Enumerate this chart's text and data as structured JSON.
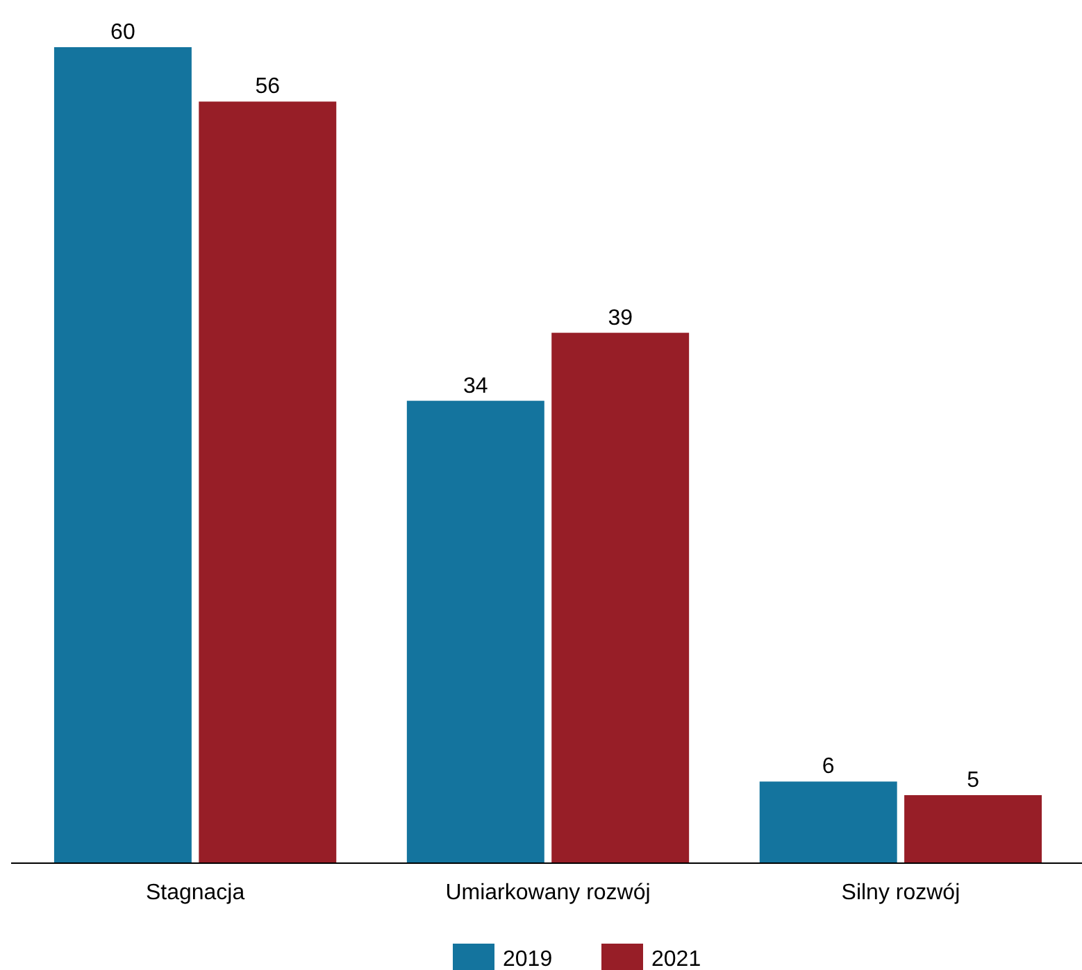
{
  "chart_data": {
    "type": "bar",
    "categories": [
      "Stagnacja",
      "Umiarkowany rozwój",
      "Silny rozwój"
    ],
    "series": [
      {
        "name": "2019",
        "color": "#14749e",
        "values": [
          60,
          34,
          6
        ]
      },
      {
        "name": "2021",
        "color": "#971e27",
        "values": [
          56,
          39,
          5
        ]
      }
    ],
    "data_labels": true,
    "legend": "bottom"
  }
}
